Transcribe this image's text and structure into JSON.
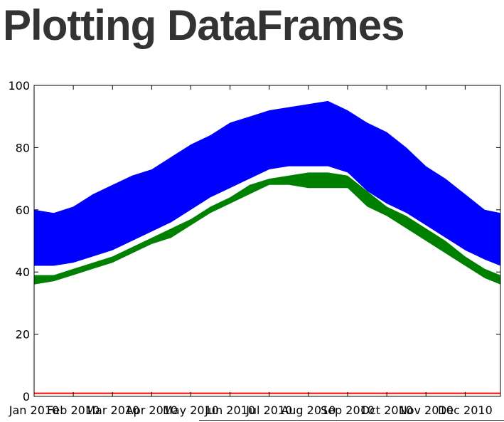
{
  "slide": {
    "title": "Plotting DataFrames"
  },
  "colors": {
    "upper_band": "#0000ff",
    "lower_band": "#008000",
    "baseline": "#ff0000",
    "text": "#333333"
  },
  "chart_data": {
    "type": "area",
    "xlabel": "",
    "ylabel": "",
    "ylim": [
      0,
      100
    ],
    "grid": false,
    "legend": "none",
    "yticks": [
      0,
      20,
      40,
      60,
      80,
      100
    ],
    "xticklabels": [
      "Jan 2010",
      "Feb 2010",
      "Mar 2010",
      "Apr 2010",
      "May 2010",
      "Jun 2010",
      "Jul 2010",
      "Aug 2010",
      "Sep 2010",
      "Oct 2010",
      "Nov 2010",
      "Dec 2010"
    ],
    "xtick_positions": [
      0,
      1,
      2,
      3,
      4,
      5,
      6,
      7,
      8,
      9,
      10,
      11
    ],
    "x": [
      0,
      0.5,
      1,
      1.5,
      2,
      2.5,
      3,
      3.5,
      4,
      4.5,
      5,
      5.5,
      6,
      6.5,
      7,
      7.5,
      8,
      8.5,
      9,
      9.5,
      10,
      10.5,
      11,
      11.5,
      11.9
    ],
    "series": [
      {
        "kind": "band",
        "color_key": "upper_band",
        "low": [
          42,
          42,
          43,
          45,
          47,
          50,
          53,
          56,
          60,
          64,
          67,
          70,
          73,
          74,
          74,
          74,
          72,
          66,
          62,
          59,
          55,
          51,
          47,
          44,
          42
        ],
        "high": [
          60,
          59,
          61,
          65,
          68,
          71,
          73,
          77,
          81,
          84,
          88,
          90,
          92,
          93,
          94,
          95,
          92,
          88,
          85,
          80,
          74,
          70,
          65,
          60,
          59
        ]
      },
      {
        "kind": "band",
        "color_key": "lower_band",
        "low": [
          36,
          37,
          39,
          41,
          43,
          46,
          49,
          51,
          55,
          59,
          62,
          65,
          68,
          68,
          67,
          67,
          67,
          61,
          58,
          54,
          50,
          46,
          42,
          38,
          36
        ],
        "high": [
          39,
          39,
          41,
          43,
          45,
          48,
          51,
          54,
          57,
          61,
          64,
          68,
          70,
          71,
          72,
          72,
          71,
          66,
          61,
          58,
          54,
          50,
          45,
          41,
          39
        ]
      },
      {
        "kind": "line",
        "color_key": "baseline",
        "values": [
          1,
          1,
          1,
          1,
          1,
          1,
          1,
          1,
          1,
          1,
          1,
          1,
          1,
          1,
          1,
          1,
          1,
          1,
          1,
          1,
          1,
          1,
          1,
          1,
          1
        ]
      }
    ]
  }
}
